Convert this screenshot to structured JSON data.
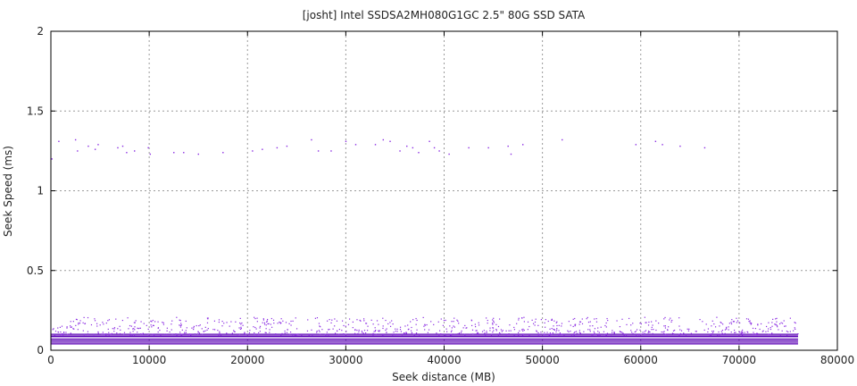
{
  "chart_data": {
    "type": "scatter",
    "title": "[josht] Intel SSDSA2MH080G1GC 2.5\" 80G SSD SATA",
    "xlabel": "Seek distance (MB)",
    "ylabel": "Seek Speed (ms)",
    "xlim": [
      0,
      80000
    ],
    "ylim": [
      0,
      2
    ],
    "x_ticks": [
      "0",
      "10000",
      "20000",
      "30000",
      "40000",
      "50000",
      "60000",
      "70000",
      "80000"
    ],
    "y_ticks": [
      "0",
      "0.5",
      "1",
      "1.5",
      "2"
    ],
    "x_tick_values": [
      0,
      10000,
      20000,
      30000,
      40000,
      50000,
      60000,
      70000,
      80000
    ],
    "y_tick_values": [
      0,
      0.5,
      1,
      1.5,
      2
    ],
    "grid": true,
    "legend": "none",
    "colors": {
      "dense_band": "#5a00b4",
      "points": "#8a2be2",
      "axes": "#000000",
      "grid": "#9a9a9a"
    },
    "bands": [
      {
        "name": "",
        "y_values": [
          0.1,
          0.09,
          0.085,
          0.07,
          0.06,
          0.05,
          0.04
        ],
        "x_range": [
          0,
          76000
        ]
      }
    ],
    "series": [
      {
        "name": "",
        "points": [
          [
            100,
            1.2
          ],
          [
            800,
            1.31
          ],
          [
            2500,
            1.32
          ],
          [
            2700,
            1.25
          ],
          [
            3800,
            1.28
          ],
          [
            4500,
            1.26
          ],
          [
            4800,
            1.29
          ],
          [
            6800,
            1.27
          ],
          [
            7300,
            1.28
          ],
          [
            7700,
            1.24
          ],
          [
            8500,
            1.25
          ],
          [
            9900,
            1.27
          ],
          [
            10100,
            1.23
          ],
          [
            12500,
            1.24
          ],
          [
            13500,
            1.24
          ],
          [
            15000,
            1.23
          ],
          [
            17500,
            1.24
          ],
          [
            20500,
            1.25
          ],
          [
            21500,
            1.26
          ],
          [
            23000,
            1.27
          ],
          [
            24000,
            1.28
          ],
          [
            26500,
            1.32
          ],
          [
            27200,
            1.25
          ],
          [
            28500,
            1.25
          ],
          [
            30000,
            1.31
          ],
          [
            31000,
            1.29
          ],
          [
            33000,
            1.29
          ],
          [
            33800,
            1.32
          ],
          [
            34500,
            1.31
          ],
          [
            35500,
            1.25
          ],
          [
            36200,
            1.28
          ],
          [
            36800,
            1.27
          ],
          [
            37400,
            1.24
          ],
          [
            38500,
            1.31
          ],
          [
            39000,
            1.27
          ],
          [
            39500,
            1.25
          ],
          [
            40500,
            1.23
          ],
          [
            42500,
            1.27
          ],
          [
            44500,
            1.27
          ],
          [
            46500,
            1.28
          ],
          [
            46800,
            1.23
          ],
          [
            48000,
            1.29
          ],
          [
            52000,
            1.32
          ],
          [
            59500,
            1.29
          ],
          [
            61500,
            1.31
          ],
          [
            62200,
            1.29
          ],
          [
            64000,
            1.28
          ],
          [
            66500,
            1.27
          ]
        ]
      }
    ]
  }
}
